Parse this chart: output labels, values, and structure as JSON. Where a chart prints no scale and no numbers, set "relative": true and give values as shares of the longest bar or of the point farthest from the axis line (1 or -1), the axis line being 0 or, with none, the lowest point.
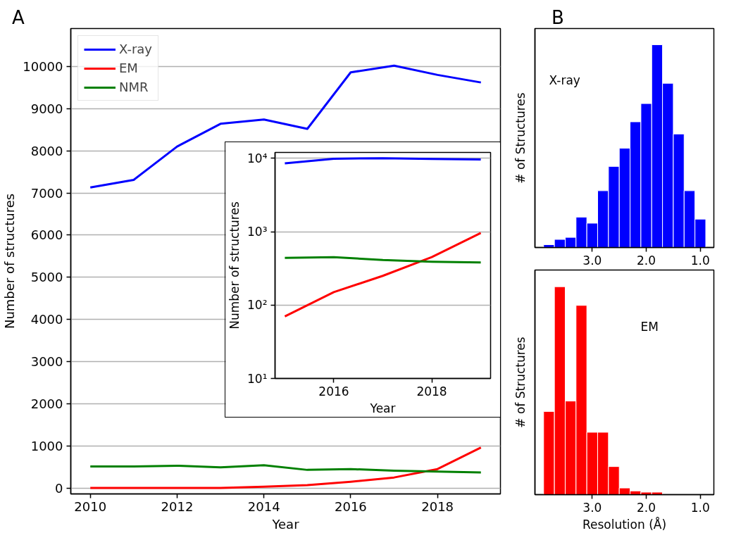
{
  "chart_data": [
    {
      "type": "line",
      "annotations": [
        "A"
      ],
      "xlabel": "Year",
      "ylabel": "Number of structures",
      "x": [
        2010,
        2011,
        2012,
        2013,
        2014,
        2015,
        2016,
        2017,
        2018,
        2019
      ],
      "series": [
        {
          "name": "X-ray",
          "color": "#0000ff",
          "values": [
            7130,
            7310,
            8100,
            8640,
            8740,
            8520,
            9860,
            10020,
            9800,
            9620
          ]
        },
        {
          "name": "EM",
          "color": "#ff0000",
          "values": [
            0,
            0,
            0,
            0,
            30,
            70,
            150,
            250,
            450,
            960
          ]
        },
        {
          "name": "NMR",
          "color": "#008000",
          "values": [
            510,
            510,
            530,
            490,
            540,
            430,
            450,
            410,
            390,
            370
          ]
        }
      ],
      "xlim": [
        2009.55,
        2019.45
      ],
      "ylim": [
        -140,
        10900
      ],
      "xticks": [
        2010,
        2012,
        2014,
        2016,
        2018
      ],
      "yticks": [
        0,
        1000,
        2000,
        3000,
        4000,
        5000,
        6000,
        7000,
        8000,
        9000,
        10000
      ],
      "grid": "y",
      "legend": "top left"
    },
    {
      "type": "line",
      "xlabel": "Year",
      "ylabel": "Number of structures",
      "x": [
        2015,
        2016,
        2017,
        2018,
        2019
      ],
      "series": [
        {
          "color": "#0000ff",
          "values": [
            8520,
            9860,
            10020,
            9800,
            9620
          ]
        },
        {
          "color": "#ff0000",
          "values": [
            70,
            150,
            250,
            450,
            960
          ]
        },
        {
          "color": "#008000",
          "values": [
            440,
            450,
            410,
            390,
            380
          ]
        }
      ],
      "log": "y",
      "xlim": [
        2014.8,
        2019.2
      ],
      "ylim": [
        10,
        12000
      ],
      "xticks": [
        2016,
        2018
      ],
      "yticks": [
        {
          "value": 10,
          "label": "10¹"
        },
        {
          "value": 100,
          "label": "10²"
        },
        {
          "value": 1000,
          "label": "10³"
        },
        {
          "value": 10000,
          "label": "10⁴"
        }
      ],
      "grid": "y"
    },
    {
      "type": "bar",
      "annotations": [
        "B"
      ],
      "title": "X-ray",
      "ylabel": "# of Structures",
      "relative": true,
      "color": "#0000ff",
      "x": [
        3.8,
        3.6,
        3.4,
        3.2,
        3.0,
        2.8,
        2.6,
        2.4,
        2.2,
        2.0,
        1.8,
        1.6,
        1.4,
        1.2,
        1.0
      ],
      "values": [
        0.014,
        0.04,
        0.05,
        0.15,
        0.12,
        0.28,
        0.4,
        0.49,
        0.62,
        0.71,
        1.0,
        0.81,
        0.56,
        0.28,
        0.14
      ],
      "xlim": [
        4.06,
        0.75
      ],
      "xticks": [
        {
          "value": 3,
          "label": "3.0"
        },
        {
          "value": 2,
          "label": "2.0"
        },
        {
          "value": 1,
          "label": "1.0"
        }
      ]
    },
    {
      "type": "bar",
      "title": "EM",
      "xlabel": "Resolution (Å)",
      "ylabel": "# of Structures",
      "relative": true,
      "color": "#ff0000",
      "x": [
        3.8,
        3.6,
        3.4,
        3.2,
        3.0,
        2.8,
        2.6,
        2.4,
        2.2,
        2.0,
        1.8
      ],
      "values": [
        0.4,
        1.0,
        0.45,
        0.91,
        0.3,
        0.3,
        0.135,
        0.032,
        0.018,
        0.012,
        0.012
      ],
      "xlim": [
        4.06,
        0.75
      ],
      "xticks": [
        {
          "value": 3,
          "label": "3.0"
        },
        {
          "value": 2,
          "label": "2.0"
        },
        {
          "value": 1,
          "label": "1.0"
        }
      ]
    }
  ]
}
